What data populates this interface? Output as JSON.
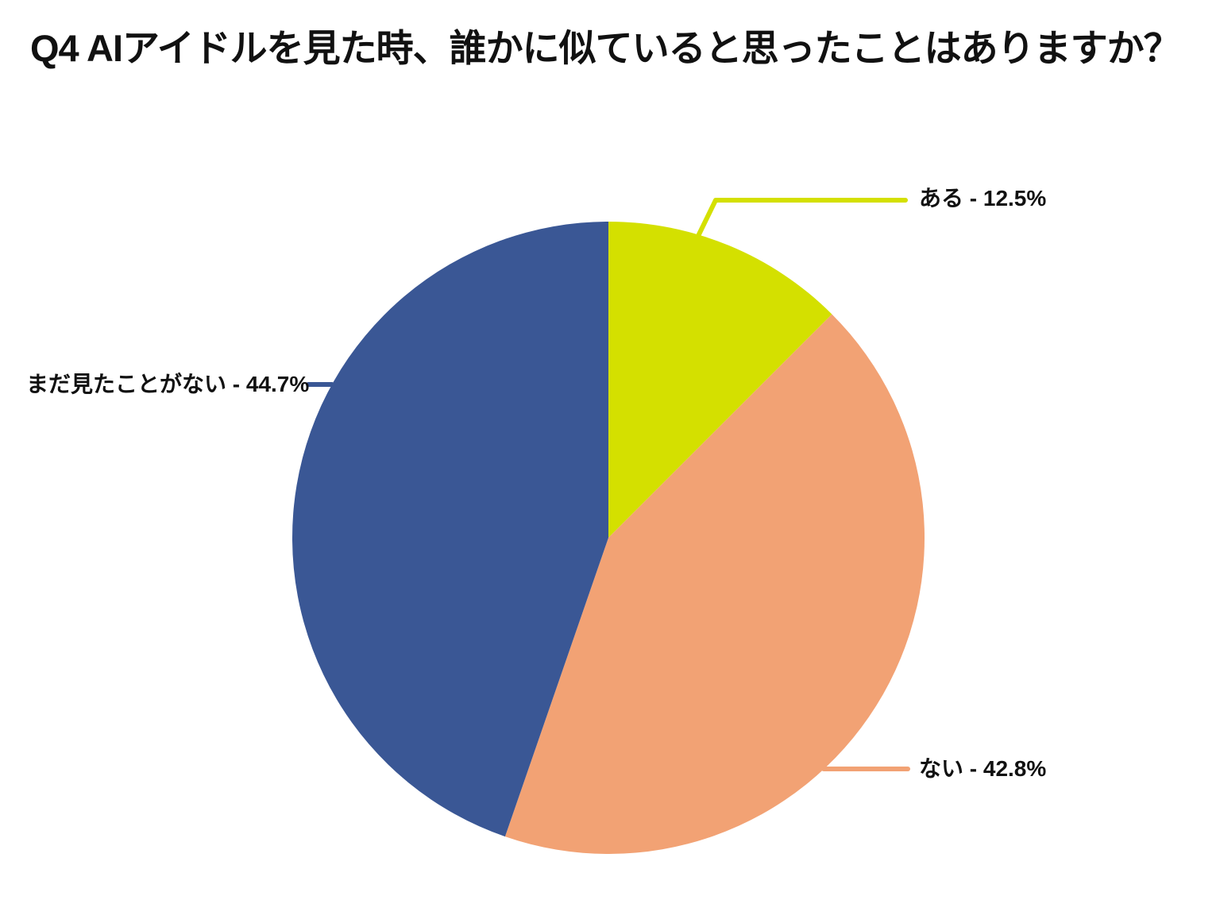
{
  "title": "Q4 AIアイドルを見た時、誰かに似ていると思ったことはありますか？",
  "chart_data": {
    "type": "pie",
    "title": "Q4 AIアイドルを見た時、誰かに似ていると思ったことはありますか？",
    "unit": "%",
    "start_angle_deg": 0,
    "direction": "clockwise",
    "legend_position": "none",
    "background_color": "#FFFFFF",
    "text_color": "#111111",
    "slices": [
      {
        "label": "ある",
        "value": 12.5,
        "display": "ある - 12.5%",
        "color": "#D4E000",
        "callout_side": "top-right"
      },
      {
        "label": "ない",
        "value": 42.8,
        "display": "ない - 42.8%",
        "color": "#F2A274",
        "callout_side": "bottom-right"
      },
      {
        "label": "まだ見たことがない",
        "value": 44.7,
        "display": "まだ見たことがない - 44.7%",
        "color": "#3A5795",
        "callout_side": "left"
      }
    ]
  }
}
